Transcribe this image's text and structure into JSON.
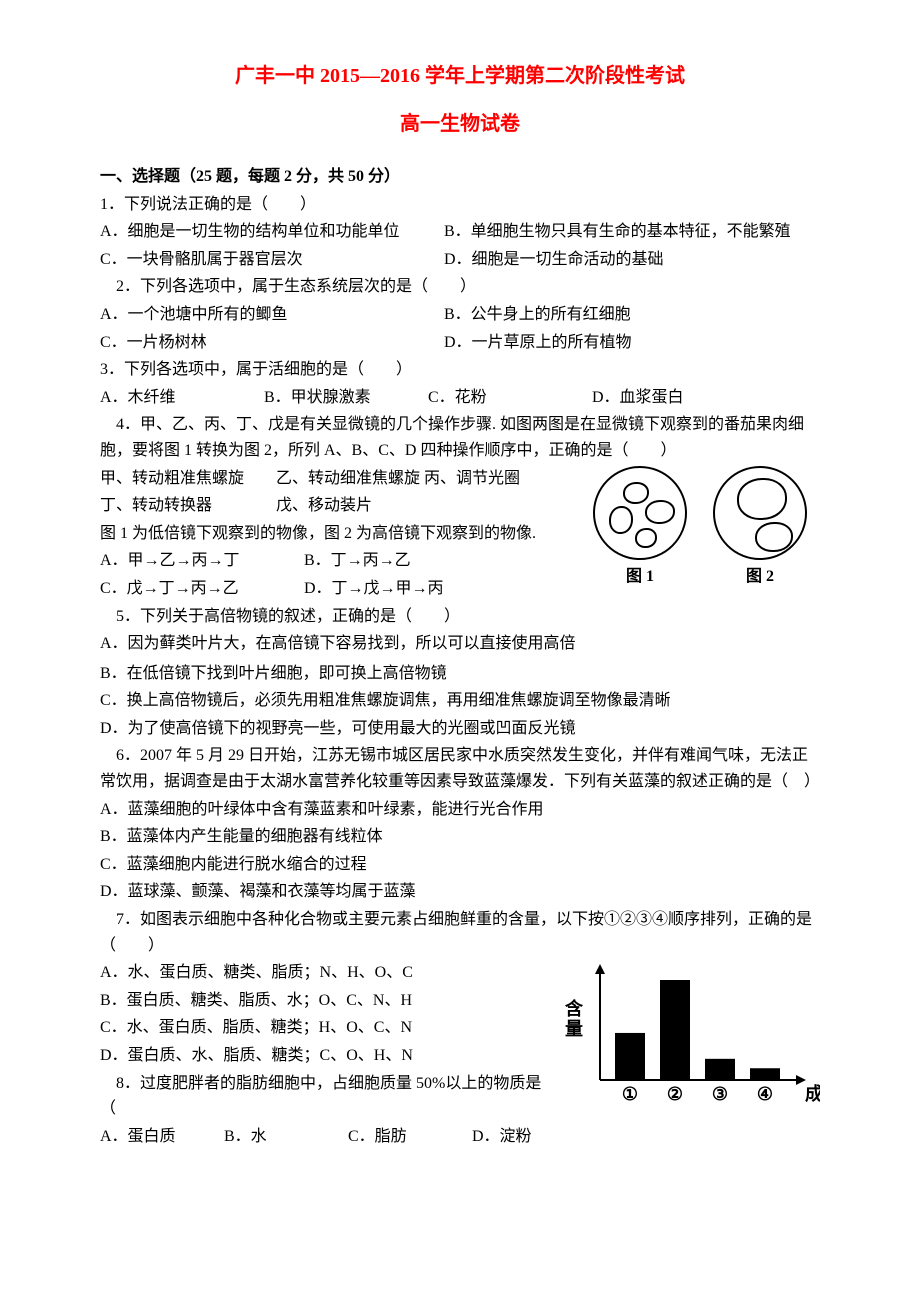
{
  "title1": "广丰一中 2015—2016 学年上学期第二次阶段性考试",
  "title2": "高一生物试卷",
  "section_header": "一、选择题（25 题，每题 2 分，共 50 分）",
  "q1": {
    "stem": "1．下列说法正确的是（　　）",
    "a": "A．细胞是一切生物的结构单位和功能单位",
    "b": "B．单细胞生物只具有生命的基本特征，不能繁殖",
    "c": "C．一块骨骼肌属于器官层次",
    "d": "D．细胞是一切生命活动的基础"
  },
  "q2": {
    "stem": "　2．下列各选项中，属于生态系统层次的是（　　）",
    "a": "A．一个池塘中所有的鲫鱼",
    "b": "B．公牛身上的所有红细胞",
    "c": "C．一片杨树林",
    "d": "D．一片草原上的所有植物"
  },
  "q3": {
    "stem": "3．下列各选项中，属于活细胞的是（　　）",
    "a": "A．木纤维",
    "b": "B．甲状腺激素",
    "c": "C．花粉",
    "d": "D．血浆蛋白"
  },
  "q4": {
    "stem1": "　4．甲、乙、丙、丁、戊是有关显微镜的几个操作步骤. 如图两图是在显微镜下观察到的番茄果肉细胞，要将图 1 转换为图 2，所列 A、B、C、D 四种操作顺序中，正确的是（　　）",
    "line_methods1": "甲、转动粗准焦螺旋　　乙、转动细准焦螺旋 丙、调节光圈",
    "line_methods2": "丁、转动转换器　　　　戊、移动装片",
    "line_desc": "图 1 为低倍镜下观察到的物像，图 2 为高倍镜下观察到的物像.",
    "a": "A．甲→乙→丙→丁",
    "b": "B．丁→丙→乙",
    "c": "C．戊→丁→丙→乙",
    "d": "D．丁→戊→甲→丙",
    "fig_label1": "图 1",
    "fig_label2": "图 2"
  },
  "q5": {
    "stem": "　5．下列关于高倍物镜的叙述，正确的是（　　）",
    "a": "A．因为藓类叶片大，在高倍镜下容易找到，所以可以直接使用高倍",
    "b": "B．在低倍镜下找到叶片细胞，即可换上高倍物镜",
    "c": "C．换上高倍物镜后，必须先用粗准焦螺旋调焦，再用细准焦螺旋调至物像最清晰",
    "d": "D．为了使高倍镜下的视野亮一些，可使用最大的光圈或凹面反光镜"
  },
  "q6": {
    "stem": "　6．2007 年 5 月 29 日开始，江苏无锡市城区居民家中水质突然发生变化，并伴有难闻气味，无法正常饮用，据调查是由于太湖水富营养化较重等因素导致蓝藻爆发．下列有关蓝藻的叙述正确的是（　）",
    "a": "A．蓝藻细胞的叶绿体中含有藻蓝素和叶绿素，能进行光合作用",
    "b": "B．蓝藻体内产生能量的细胞器有线粒体",
    "c": "C．蓝藻细胞内能进行脱水缩合的过程",
    "d": "D．蓝球藻、颤藻、褐藻和衣藻等均属于蓝藻"
  },
  "q7": {
    "stem": "　7．如图表示细胞中各种化合物或主要元素占细胞鲜重的含量，以下按①②③④顺序排列，正确的是（　　）",
    "a": "A．水、蛋白质、糖类、脂质；N、H、O、C",
    "b": "B．蛋白质、糖类、脂质、水；O、C、N、H",
    "c": "C．水、蛋白质、脂质、糖类；H、O、C、N",
    "d": "D．蛋白质、水、脂质、糖类；C、O、H、N",
    "chart": {
      "ylabel": "含量",
      "xlabel": "成分",
      "categories": [
        "①",
        "②",
        "③",
        "④"
      ],
      "values": [
        40,
        85,
        18,
        10
      ],
      "bar_color": "#000000",
      "axis_color": "#000000",
      "background": "#ffffff",
      "font_size": 18
    }
  },
  "q8": {
    "stem": "　8．过度肥胖者的脂肪细胞中，占细胞质量 50%以上的物质是（",
    "a": "A．蛋白质",
    "b": "B．水",
    "c": "C．脂肪",
    "d": "D．淀粉"
  }
}
